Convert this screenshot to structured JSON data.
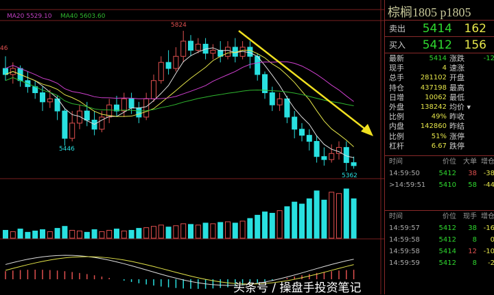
{
  "indicators": {
    "ma20": "MA20 5529.10",
    "ma40": "MA40 5603.60",
    "colors": {
      "ma5": "#e0e0e0",
      "ma10": "#e6e64a",
      "ma20": "#d040d0",
      "ma40": "#2fb82f",
      "up": "#e0504f",
      "down": "#29e0e0",
      "trend_arrow": "#f0e020"
    }
  },
  "labels": {
    "high": "5824",
    "low1": "5446",
    "low2": "5362",
    "left_edge": "46"
  },
  "chart_data": {
    "type": "candlestick",
    "candles": [
      [
        5700,
        5680,
        5740,
        5660
      ],
      [
        5680,
        5700,
        5720,
        5650
      ],
      [
        5700,
        5660,
        5710,
        5640
      ],
      [
        5660,
        5640,
        5690,
        5620
      ],
      [
        5640,
        5620,
        5660,
        5600
      ],
      [
        5620,
        5590,
        5640,
        5560
      ],
      [
        5590,
        5600,
        5630,
        5570
      ],
      [
        5600,
        5560,
        5610,
        5530
      ],
      [
        5560,
        5470,
        5570,
        5446
      ],
      [
        5470,
        5520,
        5560,
        5460
      ],
      [
        5520,
        5560,
        5580,
        5500
      ],
      [
        5560,
        5530,
        5590,
        5510
      ],
      [
        5530,
        5500,
        5560,
        5480
      ],
      [
        5500,
        5540,
        5560,
        5490
      ],
      [
        5540,
        5580,
        5600,
        5520
      ],
      [
        5580,
        5560,
        5610,
        5540
      ],
      [
        5560,
        5600,
        5620,
        5540
      ],
      [
        5600,
        5570,
        5620,
        5550
      ],
      [
        5570,
        5540,
        5590,
        5520
      ],
      [
        5540,
        5600,
        5620,
        5530
      ],
      [
        5600,
        5660,
        5680,
        5590
      ],
      [
        5660,
        5720,
        5740,
        5650
      ],
      [
        5720,
        5700,
        5760,
        5680
      ],
      [
        5700,
        5740,
        5770,
        5690
      ],
      [
        5740,
        5790,
        5824,
        5720
      ],
      [
        5790,
        5760,
        5810,
        5740
      ],
      [
        5760,
        5780,
        5800,
        5750
      ],
      [
        5780,
        5750,
        5800,
        5730
      ],
      [
        5750,
        5760,
        5780,
        5730
      ],
      [
        5760,
        5740,
        5790,
        5720
      ],
      [
        5740,
        5770,
        5790,
        5730
      ],
      [
        5770,
        5740,
        5800,
        5720
      ],
      [
        5740,
        5770,
        5790,
        5730
      ],
      [
        5770,
        5740,
        5790,
        5700
      ],
      [
        5740,
        5680,
        5750,
        5660
      ],
      [
        5680,
        5620,
        5690,
        5600
      ],
      [
        5620,
        5580,
        5640,
        5560
      ],
      [
        5580,
        5600,
        5620,
        5560
      ],
      [
        5600,
        5540,
        5610,
        5520
      ],
      [
        5540,
        5500,
        5560,
        5470
      ],
      [
        5500,
        5480,
        5520,
        5460
      ],
      [
        5480,
        5460,
        5500,
        5430
      ],
      [
        5460,
        5410,
        5480,
        5390
      ],
      [
        5410,
        5400,
        5440,
        5380
      ],
      [
        5400,
        5420,
        5450,
        5390
      ],
      [
        5420,
        5440,
        5460,
        5400
      ],
      [
        5440,
        5390,
        5460,
        5362
      ],
      [
        5390,
        5380,
        5410,
        5370
      ]
    ],
    "volume": [
      12,
      10,
      14,
      9,
      11,
      13,
      10,
      15,
      18,
      12,
      11,
      9,
      13,
      10,
      12,
      14,
      11,
      12,
      15,
      16,
      18,
      20,
      17,
      19,
      22,
      21,
      20,
      23,
      22,
      24,
      25,
      23,
      26,
      30,
      35,
      40,
      38,
      42,
      48,
      55,
      52,
      60,
      72,
      58,
      70,
      68,
      75,
      60
    ],
    "price_range": [
      5362,
      5824
    ]
  },
  "panel": {
    "title": "棕榈1805  p1805",
    "ask": {
      "label": "卖出",
      "price": "5414",
      "vol": "162"
    },
    "bid": {
      "label": "买入",
      "price": "5412",
      "vol": "156"
    },
    "stats": [
      [
        "最新",
        "5414",
        "涨跌",
        "-12"
      ],
      [
        "现手",
        "4",
        "速涨",
        ""
      ],
      [
        "总手",
        "281102",
        "开盘",
        ""
      ],
      [
        "持仓",
        "437198",
        "最高",
        ""
      ],
      [
        "日增",
        "10062",
        "最低",
        ""
      ],
      [
        "外盘",
        "138242",
        "均价 ▾",
        ""
      ],
      [
        "比例",
        "49%",
        "昨收",
        ""
      ],
      [
        "内盘",
        "142860",
        "昨结",
        ""
      ],
      [
        "比例",
        "51%",
        "涨停",
        ""
      ],
      [
        "杠杆",
        "6.67",
        "跌停",
        ""
      ]
    ],
    "big_orders": {
      "headers": [
        "时间",
        "价位",
        "大单",
        "增仓"
      ],
      "rows": [
        [
          "14:59:50",
          "5412",
          "38",
          "-38"
        ],
        [
          ">14:59:51",
          "5410",
          "58",
          "-44"
        ]
      ]
    },
    "ticks": {
      "headers": [
        "时间",
        "价位",
        "现手",
        "增仓"
      ],
      "rows": [
        [
          "14:59:57",
          "5412",
          "38",
          "-16"
        ],
        [
          "14:59:58",
          "5412",
          "8",
          "0"
        ],
        [
          "14:59:58",
          "5414",
          "12",
          "-10"
        ],
        [
          "14:59:59",
          "5412",
          "8",
          "-2"
        ]
      ]
    }
  },
  "watermark": "头条号 / 操盘手投资笔记"
}
